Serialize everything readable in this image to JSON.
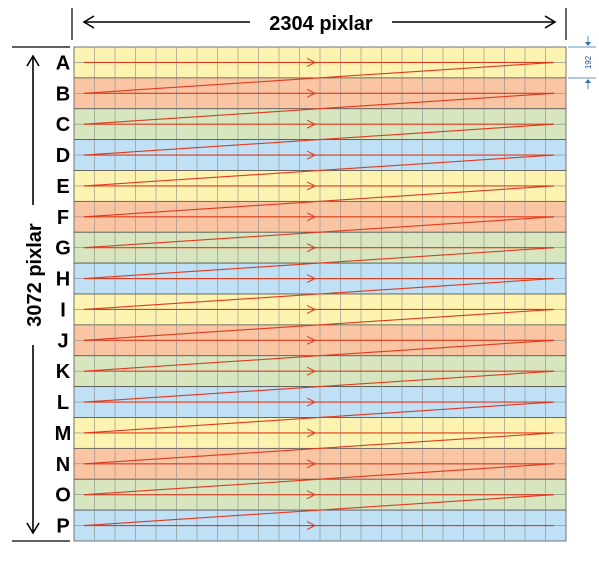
{
  "diagram": {
    "width_label": "2304 pixlar",
    "height_label": "3072 pixlar",
    "row_height_label": "192",
    "rows": [
      {
        "label": "A",
        "color": "#fdf3b0"
      },
      {
        "label": "B",
        "color": "#f9c5a3"
      },
      {
        "label": "C",
        "color": "#d8e6bf"
      },
      {
        "label": "D",
        "color": "#bfe0f5"
      },
      {
        "label": "E",
        "color": "#fdf3b0"
      },
      {
        "label": "F",
        "color": "#f9c5a3"
      },
      {
        "label": "G",
        "color": "#d8e6bf"
      },
      {
        "label": "H",
        "color": "#bfe0f5"
      },
      {
        "label": "I",
        "color": "#fdf3b0"
      },
      {
        "label": "J",
        "color": "#f9c5a3"
      },
      {
        "label": "K",
        "color": "#d8e6bf"
      },
      {
        "label": "L",
        "color": "#bfe0f5"
      },
      {
        "label": "M",
        "color": "#fdf3b0"
      },
      {
        "label": "N",
        "color": "#f9c5a3"
      },
      {
        "label": "O",
        "color": "#d8e6bf"
      },
      {
        "label": "P",
        "color": "#bfe0f5"
      }
    ],
    "columns": 24,
    "scan_color": "#e03a1e",
    "grid_line_color": "#8a8a8a"
  }
}
